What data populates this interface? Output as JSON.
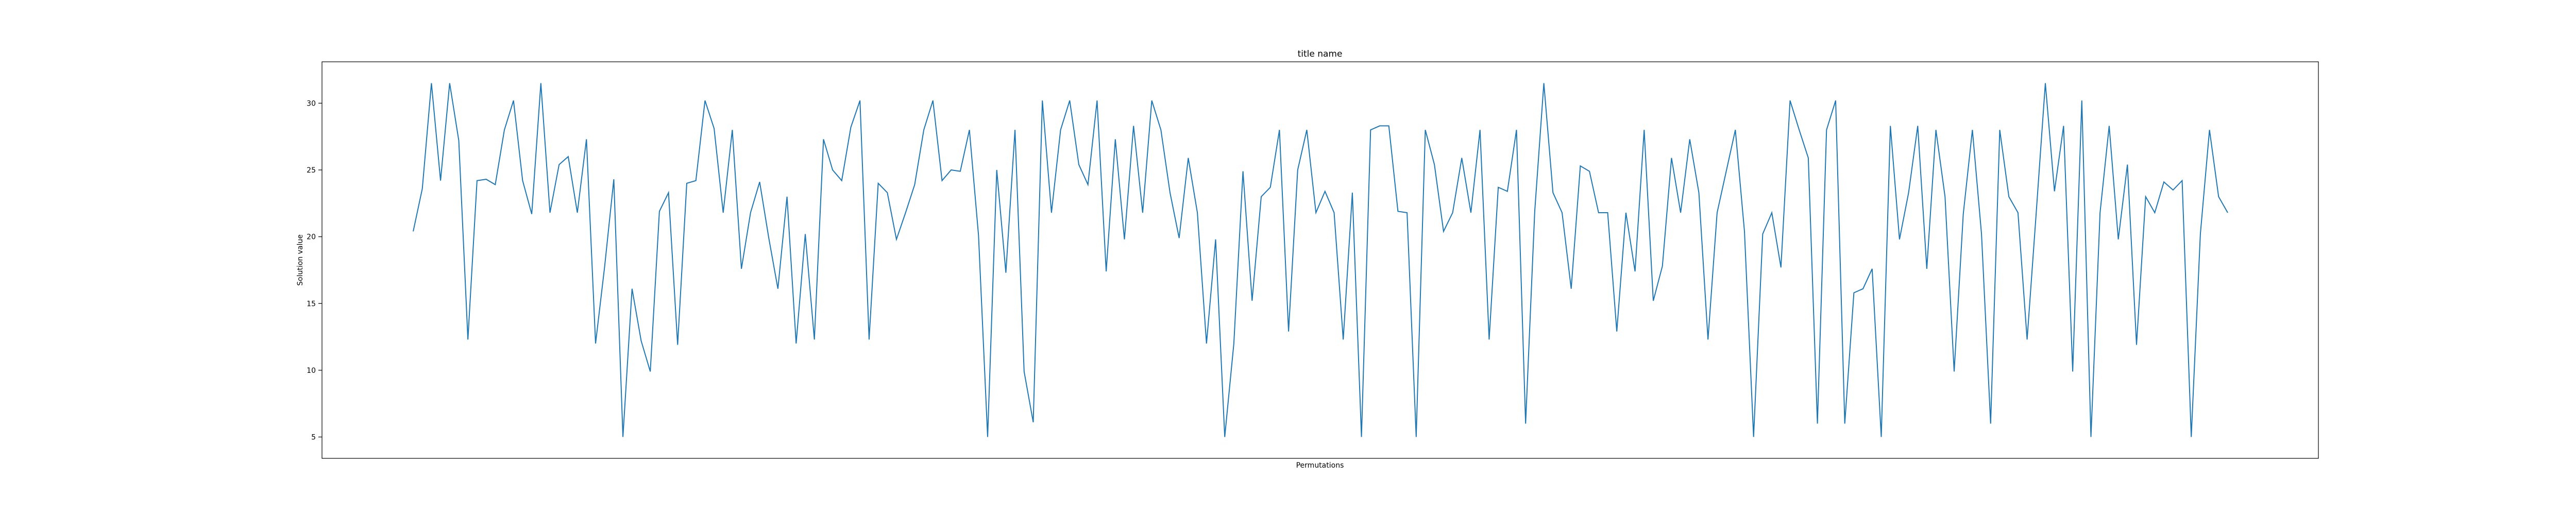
{
  "chart_data": {
    "type": "line",
    "title": "title name",
    "xlabel": "Permutations",
    "ylabel": "Solution value",
    "yticks": [
      5,
      10,
      15,
      20,
      25,
      30
    ],
    "ylim": [
      3.4,
      33.1
    ],
    "xticks_visible": false,
    "grid": false,
    "colors": {
      "line": "#1f77b4",
      "axes": "#000000",
      "background": "#ffffff"
    },
    "series": [
      {
        "values": [
          20.4,
          23.6,
          31.5,
          24.2,
          31.5,
          27.2,
          12.3,
          24.2,
          24.3,
          23.9,
          28.0,
          30.2,
          24.2,
          21.7,
          31.5,
          21.8,
          25.4,
          26.0,
          21.8,
          27.3,
          12.0,
          17.8,
          24.3,
          5.0,
          16.1,
          12.2,
          9.9,
          21.9,
          23.3,
          11.9,
          24.0,
          24.2,
          30.2,
          28.1,
          21.8,
          28.0,
          17.6,
          21.8,
          24.1,
          19.9,
          16.1,
          23.0,
          12.0,
          20.2,
          12.3,
          27.3,
          25.0,
          24.2,
          28.2,
          30.2,
          12.3,
          24.0,
          23.3,
          19.8,
          21.8,
          23.9,
          28.0,
          30.2,
          24.2,
          25.0,
          24.9,
          28.0,
          20.1,
          5.0,
          25.0,
          17.3,
          28.0,
          9.9,
          6.1,
          30.2,
          21.8,
          28.0,
          30.2,
          25.4,
          23.9,
          30.2,
          17.4,
          27.3,
          19.8,
          28.3,
          21.8,
          30.2,
          28.0,
          23.3,
          19.9,
          25.9,
          21.8,
          12.0,
          19.8,
          5.0,
          12.0,
          24.9,
          15.2,
          23.0,
          23.7,
          28.0,
          12.9,
          25.0,
          28.0,
          21.8,
          23.4,
          21.8,
          12.3,
          23.3,
          5.0,
          28.0,
          28.3,
          28.3,
          21.9,
          21.8,
          5.0,
          28.0,
          25.4,
          20.4,
          21.8,
          25.9,
          21.8,
          28.0,
          12.3,
          23.7,
          23.4,
          28.0,
          6.0,
          21.9,
          31.5,
          23.3,
          21.8,
          16.1,
          25.3,
          24.9,
          21.8,
          21.8,
          12.9,
          21.8,
          17.4,
          28.0,
          15.2,
          17.8,
          25.9,
          21.8,
          27.3,
          23.3,
          12.3,
          21.8,
          24.9,
          28.0,
          20.4,
          5.0,
          20.2,
          21.8,
          17.7,
          30.2,
          28.0,
          25.9,
          6.0,
          28.0,
          30.2,
          6.0,
          15.8,
          16.1,
          17.6,
          5.0,
          28.3,
          19.8,
          23.3,
          28.3,
          17.6,
          28.0,
          23.0,
          9.9,
          21.7,
          28.0,
          20.2,
          6.0,
          28.0,
          23.0,
          21.8,
          12.3,
          21.8,
          31.5,
          23.4,
          28.3,
          9.9,
          30.2,
          5.0,
          21.8,
          28.3,
          19.8,
          25.4,
          11.9,
          23.0,
          21.8,
          24.1,
          23.5,
          24.2,
          5.0,
          20.2,
          28.0,
          23.0,
          21.8
        ]
      }
    ]
  }
}
